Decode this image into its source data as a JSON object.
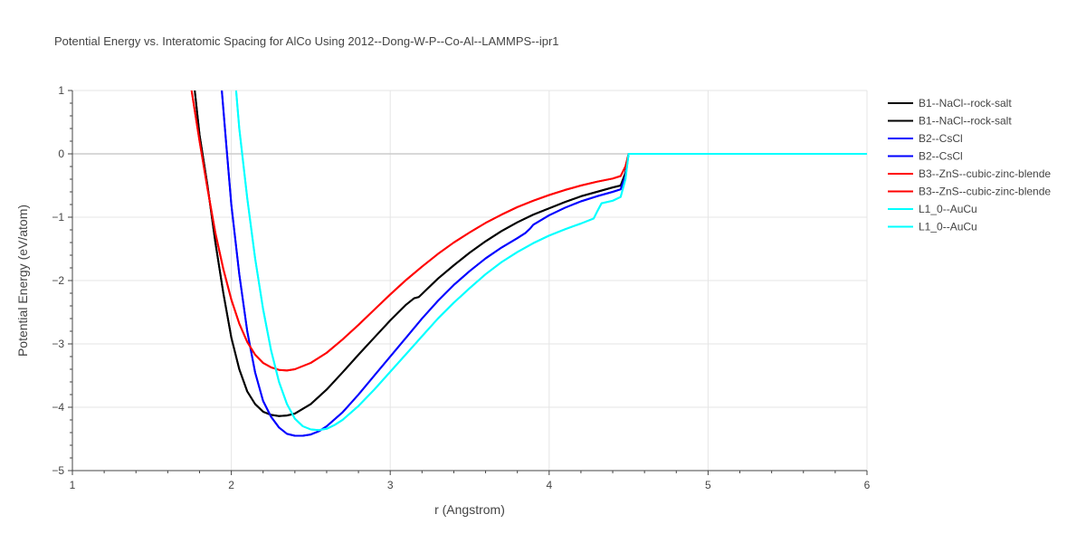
{
  "chart_data": {
    "type": "line",
    "title": "Potential Energy vs. Interatomic Spacing for AlCo Using 2012--Dong-W-P--Co-Al--LAMMPS--ipr1",
    "xlabel": "r (Angstrom)",
    "ylabel": "Potential Energy (eV/atom)",
    "xlim": [
      1,
      6
    ],
    "ylim": [
      -5,
      1
    ],
    "x_ticks": [
      1,
      2,
      3,
      4,
      5,
      6
    ],
    "x_tick_labels": [
      "1",
      "2",
      "3",
      "4",
      "5",
      "6"
    ],
    "y_ticks": [
      1,
      0,
      -1,
      -2,
      -3,
      -4,
      -5
    ],
    "y_tick_labels": [
      "1",
      "0",
      "−1",
      "−2",
      "−3",
      "−4",
      "−5"
    ],
    "grid": true,
    "legend_position": "top-right",
    "series": [
      {
        "name": "B1--NaCl--rock-salt",
        "color": "#000000",
        "x": [
          1.77,
          1.8,
          1.85,
          1.9,
          1.95,
          2.0,
          2.05,
          2.1,
          2.15,
          2.2,
          2.25,
          2.3,
          2.35,
          2.4,
          2.5,
          2.6,
          2.7,
          2.8,
          2.9,
          3.0,
          3.1,
          3.15,
          3.18,
          3.3,
          3.4,
          3.5,
          3.6,
          3.7,
          3.8,
          3.9,
          4.0,
          4.1,
          4.2,
          4.3,
          4.4,
          4.45,
          4.48,
          4.5,
          4.6,
          5.0,
          5.5,
          6.0
        ],
        "y": [
          1.0,
          0.3,
          -0.5,
          -1.4,
          -2.2,
          -2.9,
          -3.4,
          -3.75,
          -3.95,
          -4.07,
          -4.12,
          -4.14,
          -4.13,
          -4.1,
          -3.95,
          -3.72,
          -3.45,
          -3.17,
          -2.9,
          -2.63,
          -2.38,
          -2.28,
          -2.26,
          -1.97,
          -1.76,
          -1.56,
          -1.38,
          -1.22,
          -1.08,
          -0.96,
          -0.86,
          -0.76,
          -0.67,
          -0.6,
          -0.53,
          -0.5,
          -0.3,
          0.0,
          0.0,
          0.0,
          0.0,
          0.0
        ]
      },
      {
        "name": "B1--NaCl--rock-salt",
        "color": "#000000",
        "x": [
          1.77,
          1.8,
          1.85,
          1.9,
          1.95,
          2.0,
          2.05,
          2.1,
          2.15,
          2.2,
          2.25,
          2.3,
          2.35,
          2.4,
          2.5,
          2.6,
          2.7,
          2.8,
          2.9,
          3.0,
          3.1,
          3.15,
          3.18,
          3.3,
          3.4,
          3.5,
          3.6,
          3.7,
          3.8,
          3.9,
          4.0,
          4.1,
          4.2,
          4.3,
          4.4,
          4.45,
          4.48,
          4.5,
          4.6,
          5.0,
          5.5,
          6.0
        ],
        "y": [
          1.0,
          0.3,
          -0.5,
          -1.4,
          -2.2,
          -2.9,
          -3.4,
          -3.75,
          -3.95,
          -4.07,
          -4.12,
          -4.14,
          -4.13,
          -4.1,
          -3.95,
          -3.72,
          -3.45,
          -3.17,
          -2.9,
          -2.63,
          -2.38,
          -2.28,
          -2.26,
          -1.97,
          -1.76,
          -1.56,
          -1.38,
          -1.22,
          -1.08,
          -0.96,
          -0.86,
          -0.76,
          -0.67,
          -0.6,
          -0.53,
          -0.5,
          -0.3,
          0.0,
          0.0,
          0.0,
          0.0,
          0.0
        ]
      },
      {
        "name": "B2--CsCl",
        "color": "#0000ff",
        "x": [
          1.94,
          1.97,
          2.0,
          2.05,
          2.1,
          2.15,
          2.2,
          2.25,
          2.3,
          2.35,
          2.4,
          2.45,
          2.5,
          2.55,
          2.6,
          2.7,
          2.8,
          2.9,
          3.0,
          3.1,
          3.2,
          3.3,
          3.4,
          3.5,
          3.6,
          3.7,
          3.8,
          3.85,
          3.88,
          3.9,
          4.0,
          4.1,
          4.2,
          4.3,
          4.4,
          4.45,
          4.48,
          4.5,
          4.6,
          5.0,
          5.5,
          6.0
        ],
        "y": [
          1.0,
          0.1,
          -0.8,
          -1.9,
          -2.8,
          -3.45,
          -3.9,
          -4.15,
          -4.32,
          -4.42,
          -4.45,
          -4.45,
          -4.43,
          -4.38,
          -4.3,
          -4.08,
          -3.8,
          -3.5,
          -3.2,
          -2.9,
          -2.6,
          -2.32,
          -2.07,
          -1.85,
          -1.65,
          -1.48,
          -1.33,
          -1.25,
          -1.18,
          -1.12,
          -0.97,
          -0.85,
          -0.75,
          -0.67,
          -0.6,
          -0.56,
          -0.35,
          0.0,
          0.0,
          0.0,
          0.0,
          0.0
        ]
      },
      {
        "name": "B2--CsCl",
        "color": "#0000ff",
        "x": [
          1.94,
          1.97,
          2.0,
          2.05,
          2.1,
          2.15,
          2.2,
          2.25,
          2.3,
          2.35,
          2.4,
          2.45,
          2.5,
          2.55,
          2.6,
          2.7,
          2.8,
          2.9,
          3.0,
          3.1,
          3.2,
          3.3,
          3.4,
          3.5,
          3.6,
          3.7,
          3.8,
          3.85,
          3.88,
          3.9,
          4.0,
          4.1,
          4.2,
          4.3,
          4.4,
          4.45,
          4.48,
          4.5,
          4.6,
          5.0,
          5.5,
          6.0
        ],
        "y": [
          1.0,
          0.1,
          -0.8,
          -1.9,
          -2.8,
          -3.45,
          -3.9,
          -4.15,
          -4.32,
          -4.42,
          -4.45,
          -4.45,
          -4.43,
          -4.38,
          -4.3,
          -4.08,
          -3.8,
          -3.5,
          -3.2,
          -2.9,
          -2.6,
          -2.32,
          -2.07,
          -1.85,
          -1.65,
          -1.48,
          -1.33,
          -1.25,
          -1.18,
          -1.12,
          -0.97,
          -0.85,
          -0.75,
          -0.67,
          -0.6,
          -0.56,
          -0.35,
          0.0,
          0.0,
          0.0,
          0.0,
          0.0
        ]
      },
      {
        "name": "B3--ZnS--cubic-zinc-blende",
        "color": "#ff0000",
        "x": [
          1.75,
          1.8,
          1.85,
          1.9,
          1.95,
          2.0,
          2.05,
          2.1,
          2.15,
          2.2,
          2.25,
          2.3,
          2.35,
          2.4,
          2.5,
          2.6,
          2.7,
          2.8,
          2.9,
          3.0,
          3.1,
          3.2,
          3.3,
          3.4,
          3.5,
          3.6,
          3.7,
          3.8,
          3.9,
          4.0,
          4.1,
          4.2,
          4.3,
          4.4,
          4.45,
          4.48,
          4.5,
          4.6,
          5.0,
          5.5,
          6.0
        ],
        "y": [
          1.0,
          0.2,
          -0.55,
          -1.25,
          -1.82,
          -2.3,
          -2.68,
          -2.97,
          -3.17,
          -3.3,
          -3.37,
          -3.41,
          -3.42,
          -3.4,
          -3.3,
          -3.14,
          -2.93,
          -2.7,
          -2.46,
          -2.22,
          -1.99,
          -1.78,
          -1.58,
          -1.4,
          -1.24,
          -1.09,
          -0.96,
          -0.84,
          -0.74,
          -0.65,
          -0.57,
          -0.5,
          -0.44,
          -0.39,
          -0.35,
          -0.2,
          0.0,
          0.0,
          0.0,
          0.0,
          0.0
        ]
      },
      {
        "name": "B3--ZnS--cubic-zinc-blende",
        "color": "#ff0000",
        "x": [
          1.75,
          1.8,
          1.85,
          1.9,
          1.95,
          2.0,
          2.05,
          2.1,
          2.15,
          2.2,
          2.25,
          2.3,
          2.35,
          2.4,
          2.5,
          2.6,
          2.7,
          2.8,
          2.9,
          3.0,
          3.1,
          3.2,
          3.3,
          3.4,
          3.5,
          3.6,
          3.7,
          3.8,
          3.9,
          4.0,
          4.1,
          4.2,
          4.3,
          4.4,
          4.45,
          4.48,
          4.5,
          4.6,
          5.0,
          5.5,
          6.0
        ],
        "y": [
          1.0,
          0.2,
          -0.55,
          -1.25,
          -1.82,
          -2.3,
          -2.68,
          -2.97,
          -3.17,
          -3.3,
          -3.37,
          -3.41,
          -3.42,
          -3.4,
          -3.3,
          -3.14,
          -2.93,
          -2.7,
          -2.46,
          -2.22,
          -1.99,
          -1.78,
          -1.58,
          -1.4,
          -1.24,
          -1.09,
          -0.96,
          -0.84,
          -0.74,
          -0.65,
          -0.57,
          -0.5,
          -0.44,
          -0.39,
          -0.35,
          -0.2,
          0.0,
          0.0,
          0.0,
          0.0,
          0.0
        ]
      },
      {
        "name": "L1_0--AuCu",
        "color": "#00ffff",
        "x": [
          2.03,
          2.05,
          2.1,
          2.15,
          2.2,
          2.25,
          2.3,
          2.35,
          2.4,
          2.45,
          2.5,
          2.55,
          2.6,
          2.65,
          2.7,
          2.8,
          2.9,
          3.0,
          3.1,
          3.2,
          3.3,
          3.4,
          3.5,
          3.6,
          3.7,
          3.8,
          3.9,
          4.0,
          4.1,
          4.2,
          4.28,
          4.3,
          4.33,
          4.4,
          4.45,
          4.48,
          4.5,
          4.6,
          5.0,
          5.5,
          6.0
        ],
        "y": [
          1.0,
          0.4,
          -0.7,
          -1.65,
          -2.45,
          -3.1,
          -3.6,
          -3.95,
          -4.18,
          -4.3,
          -4.35,
          -4.36,
          -4.34,
          -4.28,
          -4.2,
          -3.98,
          -3.72,
          -3.44,
          -3.16,
          -2.88,
          -2.6,
          -2.35,
          -2.12,
          -1.9,
          -1.71,
          -1.55,
          -1.41,
          -1.29,
          -1.19,
          -1.1,
          -1.02,
          -0.92,
          -0.78,
          -0.74,
          -0.68,
          -0.4,
          0.0,
          0.0,
          0.0,
          0.0,
          0.0
        ]
      },
      {
        "name": "L1_0--AuCu",
        "color": "#00ffff",
        "x": [
          2.03,
          2.05,
          2.1,
          2.15,
          2.2,
          2.25,
          2.3,
          2.35,
          2.4,
          2.45,
          2.5,
          2.55,
          2.6,
          2.65,
          2.7,
          2.8,
          2.9,
          3.0,
          3.1,
          3.2,
          3.3,
          3.4,
          3.5,
          3.6,
          3.7,
          3.8,
          3.9,
          4.0,
          4.1,
          4.2,
          4.28,
          4.3,
          4.33,
          4.4,
          4.45,
          4.48,
          4.5,
          4.6,
          5.0,
          5.5,
          6.0
        ],
        "y": [
          1.0,
          0.4,
          -0.7,
          -1.65,
          -2.45,
          -3.1,
          -3.6,
          -3.95,
          -4.18,
          -4.3,
          -4.35,
          -4.36,
          -4.34,
          -4.28,
          -4.2,
          -3.98,
          -3.72,
          -3.44,
          -3.16,
          -2.88,
          -2.6,
          -2.35,
          -2.12,
          -1.9,
          -1.71,
          -1.55,
          -1.41,
          -1.29,
          -1.19,
          -1.1,
          -1.02,
          -0.92,
          -0.78,
          -0.74,
          -0.68,
          -0.4,
          0.0,
          0.0,
          0.0,
          0.0,
          0.0
        ]
      }
    ]
  }
}
